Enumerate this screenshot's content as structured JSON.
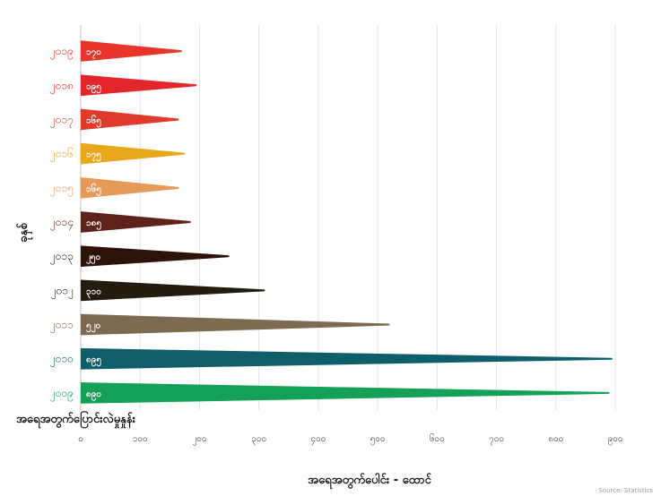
{
  "chart_data": {
    "type": "bar",
    "title": "",
    "xlabel": "အရေအတွက်ပေါင်း - ထောင်",
    "ylabel": "ခုနှစ်",
    "corner_label": "အရေအတွက်ပြောင်းလဲမှုနှုန်း",
    "xlim": [
      0,
      900
    ],
    "x_ticks": [
      "၀",
      "၁၀၀",
      "၂၀၀",
      "၃၀၀",
      "၄၀၀",
      "၅၀၀",
      "၆၀၀",
      "၇၀၀",
      "၈၀၀",
      "၉၀၀"
    ],
    "grid": true,
    "categories": [
      "၂၀၁၉",
      "၂၀၁၈",
      "၂၀၁၇",
      "၂၀၁၆",
      "၂၀၁၅",
      "၂၀၁၄",
      "၂၀၁၃",
      "၂၀၁၂",
      "၂၀၁၁",
      "၂၀၁၀",
      "၂၀၀၉"
    ],
    "values": [
      170,
      195,
      165,
      175,
      165,
      185,
      250,
      310,
      520,
      895,
      890
    ],
    "value_labels": [
      "၁၇၀",
      "၁၉၅",
      "၁၆၅",
      "၁၇၅",
      "၁၆၅",
      "၁၈၅",
      "၂၅၀",
      "၃၁၀",
      "၅၂၀",
      "၈၉၅",
      "၈၉၀"
    ],
    "colors": [
      "#e8342a",
      "#e2262a",
      "#e03a2c",
      "#e8a81c",
      "#e69a5a",
      "#5e2318",
      "#2c1208",
      "#241c0e",
      "#7d6a52",
      "#0f5f6b",
      "#14a056"
    ],
    "label_colors": [
      "#e8342a",
      "#e2262a",
      "#e03a2c",
      "#e8a81c",
      "#e69a5a",
      "#5e2318",
      "#2c1208",
      "#241c0e",
      "#7d6a52",
      "#0f5f6b",
      "#14a056"
    ]
  },
  "credit": "Source: Statistics"
}
